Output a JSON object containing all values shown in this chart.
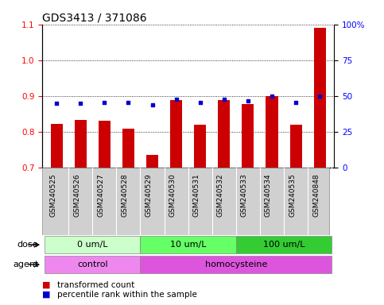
{
  "title": "GDS3413 / 371086",
  "samples": [
    "GSM240525",
    "GSM240526",
    "GSM240527",
    "GSM240528",
    "GSM240529",
    "GSM240530",
    "GSM240531",
    "GSM240532",
    "GSM240533",
    "GSM240534",
    "GSM240535",
    "GSM240848"
  ],
  "transformed_count": [
    0.822,
    0.833,
    0.832,
    0.808,
    0.735,
    0.888,
    0.82,
    0.888,
    0.878,
    0.9,
    0.82,
    1.09
  ],
  "percentile_rank": [
    0.88,
    0.88,
    0.882,
    0.882,
    0.875,
    0.892,
    0.882,
    0.892,
    0.887,
    0.9,
    0.882,
    0.9
  ],
  "ylim": [
    0.7,
    1.1
  ],
  "yticks_left": [
    0.7,
    0.8,
    0.9,
    1.0,
    1.1
  ],
  "yticks_right": [
    0,
    25,
    50,
    75,
    100
  ],
  "ytick_right_labels": [
    "0",
    "25",
    "50",
    "75",
    "100%"
  ],
  "bar_color": "#cc0000",
  "dot_color": "#0000cc",
  "dose_groups": [
    {
      "label": "0 um/L",
      "start": 0,
      "end": 3,
      "color": "#ccffcc"
    },
    {
      "label": "10 um/L",
      "start": 4,
      "end": 7,
      "color": "#66ff66"
    },
    {
      "label": "100 um/L",
      "start": 8,
      "end": 11,
      "color": "#33cc33"
    }
  ],
  "agent_groups": [
    {
      "label": "control",
      "start": 0,
      "end": 3,
      "color": "#ee88ee"
    },
    {
      "label": "homocysteine",
      "start": 4,
      "end": 11,
      "color": "#dd55dd"
    }
  ],
  "dose_label": "dose",
  "agent_label": "agent",
  "legend_bar_label": "transformed count",
  "legend_dot_label": "percentile rank within the sample",
  "title_fontsize": 10,
  "axis_label_fontsize": 8,
  "tick_fontsize": 7.5,
  "sample_fontsize": 6.5,
  "bar_width": 0.5
}
